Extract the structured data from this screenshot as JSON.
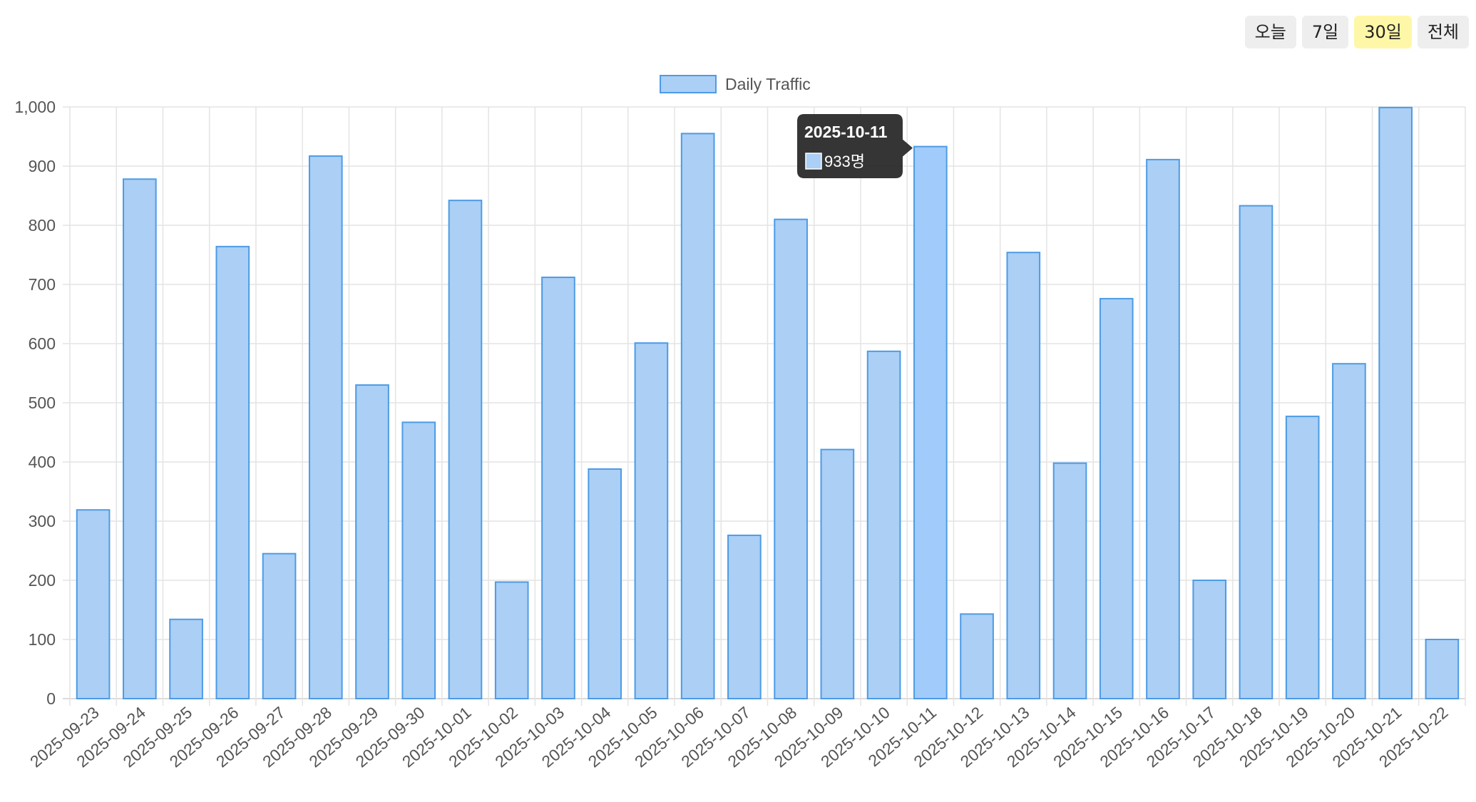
{
  "range_buttons": [
    {
      "label": "오늘",
      "active": false
    },
    {
      "label": "7일",
      "active": false
    },
    {
      "label": "30일",
      "active": true
    },
    {
      "label": "전체",
      "active": false
    }
  ],
  "chart_data": {
    "type": "bar",
    "title": "",
    "xlabel": "",
    "ylabel": "",
    "ylim": [
      0,
      1000
    ],
    "y_ticks": [
      0,
      100,
      200,
      300,
      400,
      500,
      600,
      700,
      800,
      900,
      1000
    ],
    "y_tick_labels": [
      "0",
      "100",
      "200",
      "300",
      "400",
      "500",
      "600",
      "700",
      "800",
      "900",
      "1,000"
    ],
    "grid": true,
    "legend": {
      "position": "top-center",
      "entries": [
        "Daily Traffic"
      ]
    },
    "categories": [
      "2025-09-23",
      "2025-09-24",
      "2025-09-25",
      "2025-09-26",
      "2025-09-27",
      "2025-09-28",
      "2025-09-29",
      "2025-09-30",
      "2025-10-01",
      "2025-10-02",
      "2025-10-03",
      "2025-10-04",
      "2025-10-05",
      "2025-10-06",
      "2025-10-07",
      "2025-10-08",
      "2025-10-09",
      "2025-10-10",
      "2025-10-11",
      "2025-10-12",
      "2025-10-13",
      "2025-10-14",
      "2025-10-15",
      "2025-10-16",
      "2025-10-17",
      "2025-10-18",
      "2025-10-19",
      "2025-10-20",
      "2025-10-21",
      "2025-10-22"
    ],
    "series": [
      {
        "name": "Daily Traffic",
        "values": [
          319,
          878,
          134,
          764,
          245,
          917,
          530,
          467,
          842,
          197,
          712,
          388,
          601,
          955,
          276,
          810,
          421,
          587,
          933,
          143,
          754,
          398,
          676,
          911,
          200,
          833,
          477,
          566,
          999,
          100
        ]
      }
    ],
    "colors": {
      "bar_fill": "#abcff5",
      "bar_fill_highlight": "#a1cbfb",
      "bar_border": "#4d9be6",
      "grid": "#e4e4e4",
      "tooltip_bg": "#1f1f1f"
    },
    "tooltip": {
      "category_index": 18,
      "title": "2025-10-11",
      "label": "933명"
    }
  }
}
